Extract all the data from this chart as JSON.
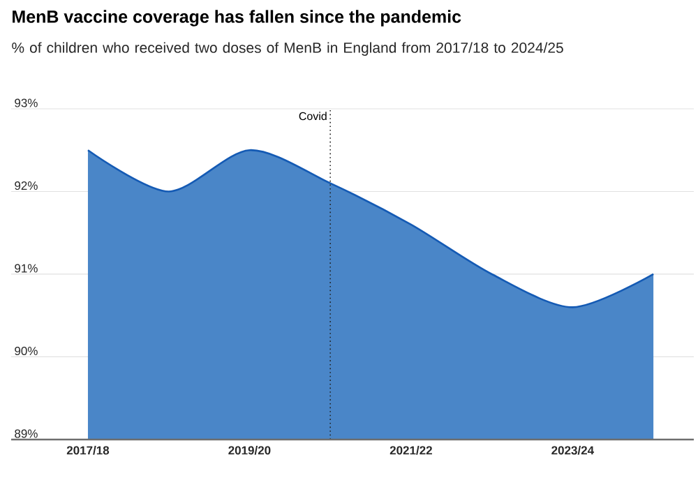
{
  "chart_data": {
    "type": "area",
    "title": "MenB vaccine coverage has fallen since the pandemic",
    "subtitle": "% of children who received two doses of MenB in England from 2017/18 to 2024/25",
    "categories": [
      "2017/18",
      null,
      "2019/20",
      null,
      "2021/22",
      null,
      "2023/24",
      null
    ],
    "series": [
      {
        "color": "#4a86c8",
        "values": [
          92.5,
          92.0,
          92.5,
          92.1,
          91.6,
          91.0,
          90.6,
          91.0
        ]
      }
    ],
    "ylim": [
      89,
      93
    ],
    "yticks": [
      {
        "value": 89,
        "label": "89%"
      },
      {
        "value": 90,
        "label": "90%"
      },
      {
        "value": 91,
        "label": "91%"
      },
      {
        "value": 92,
        "label": "92%"
      },
      {
        "value": 93,
        "label": "93%"
      }
    ],
    "grid": "y",
    "annotations": [
      "Covid"
    ]
  }
}
